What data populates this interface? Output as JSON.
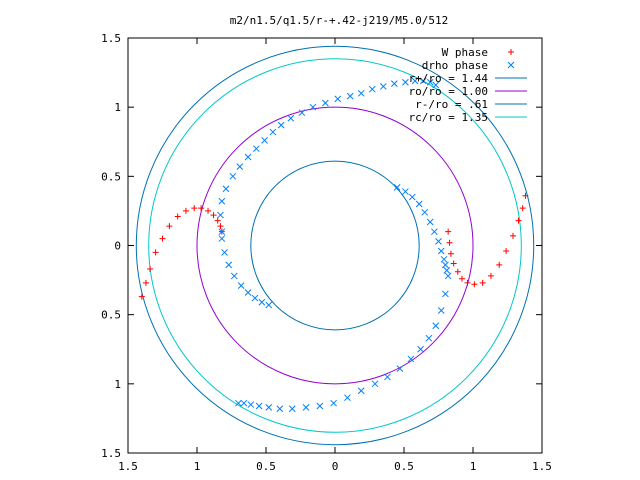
{
  "chart_data": {
    "type": "scatter",
    "title": "m2/n1.5/q1.5/r-+.42-j219/M5.0/512",
    "xlabel": "",
    "ylabel": "",
    "xlim": [
      -1.5,
      1.5
    ],
    "ylim": [
      -1.5,
      1.5
    ],
    "xticks": [
      -1.5,
      -1,
      -0.5,
      0,
      0.5,
      1,
      1.5
    ],
    "yticks": [
      -1.5,
      -1,
      -0.5,
      0,
      0.5,
      1,
      1.5
    ],
    "xtick_labels": [
      "1.5",
      "1",
      "0.5",
      "0",
      "0.5",
      "1",
      "1.5"
    ],
    "ytick_labels": [
      "1.5",
      "1",
      "0.5",
      "0",
      "0.5",
      "1",
      "1.5"
    ],
    "grid": false,
    "legend_position": "top-right",
    "series": [
      {
        "name": "W phase",
        "marker": "plus",
        "color": "#ff0000",
        "x": [
          -1.4,
          -1.37,
          -1.34,
          -1.3,
          -1.25,
          -1.2,
          -1.14,
          -1.08,
          -1.02,
          -0.97,
          -0.92,
          -0.88,
          -0.85,
          -0.83,
          -0.82,
          0.82,
          0.83,
          0.84,
          0.86,
          0.89,
          0.92,
          0.96,
          1.01,
          1.07,
          1.13,
          1.19,
          1.24,
          1.29,
          1.33,
          1.36,
          1.38
        ],
        "y": [
          -0.37,
          -0.27,
          -0.17,
          -0.05,
          0.05,
          0.14,
          0.21,
          0.25,
          0.27,
          0.27,
          0.25,
          0.22,
          0.18,
          0.14,
          0.1,
          0.1,
          0.02,
          -0.06,
          -0.13,
          -0.19,
          -0.24,
          -0.27,
          -0.28,
          -0.27,
          -0.22,
          -0.14,
          -0.04,
          0.07,
          0.18,
          0.27,
          0.36
        ]
      },
      {
        "name": "drho phase",
        "marker": "cross",
        "color": "#0080ff",
        "x": [
          -0.82,
          -0.83,
          -0.82,
          -0.79,
          -0.74,
          -0.69,
          -0.63,
          -0.57,
          -0.51,
          -0.45,
          -0.39,
          -0.32,
          -0.24,
          -0.16,
          -0.07,
          0.02,
          0.11,
          0.19,
          0.27,
          0.35,
          0.43,
          0.51,
          0.58,
          0.64,
          0.69,
          0.73,
          -0.82,
          -0.8,
          -0.77,
          -0.73,
          -0.68,
          -0.63,
          -0.58,
          -0.53,
          -0.48,
          0.45,
          0.51,
          0.56,
          0.61,
          0.65,
          0.69,
          0.72,
          0.75,
          0.77,
          0.79,
          0.8,
          0.81,
          0.82,
          0.8,
          0.77,
          0.73,
          0.68,
          0.62,
          0.55,
          0.47,
          0.38,
          0.29,
          0.19,
          0.09,
          -0.01,
          -0.11,
          -0.21,
          -0.31,
          -0.4,
          -0.48,
          -0.55,
          -0.61,
          -0.66,
          -0.7
        ],
        "y": [
          0.1,
          0.22,
          0.32,
          0.41,
          0.5,
          0.57,
          0.64,
          0.7,
          0.76,
          0.82,
          0.87,
          0.92,
          0.96,
          1.0,
          1.03,
          1.06,
          1.08,
          1.1,
          1.13,
          1.15,
          1.17,
          1.18,
          1.19,
          1.19,
          1.18,
          1.16,
          0.05,
          -0.05,
          -0.14,
          -0.22,
          -0.29,
          -0.34,
          -0.38,
          -0.41,
          -0.43,
          0.42,
          0.39,
          0.35,
          0.3,
          0.24,
          0.17,
          0.1,
          0.03,
          -0.04,
          -0.1,
          -0.14,
          -0.18,
          -0.22,
          -0.35,
          -0.47,
          -0.58,
          -0.67,
          -0.75,
          -0.82,
          -0.89,
          -0.95,
          -1.0,
          -1.05,
          -1.1,
          -1.14,
          -1.16,
          -1.17,
          -1.18,
          -1.18,
          -1.17,
          -1.16,
          -1.15,
          -1.14,
          -1.14
        ]
      }
    ],
    "circles": [
      {
        "name": "r+/ro = 1.44",
        "radius": 1.44,
        "color": "#0072b2"
      },
      {
        "name": "ro/ro = 1.00",
        "radius": 1.0,
        "color": "#9400d3"
      },
      {
        "name": "r-/ro = .61",
        "radius": 0.61,
        "color": "#0072b2"
      },
      {
        "name": "rc/ro = 1.35",
        "radius": 1.35,
        "color": "#00c8c8"
      }
    ]
  }
}
